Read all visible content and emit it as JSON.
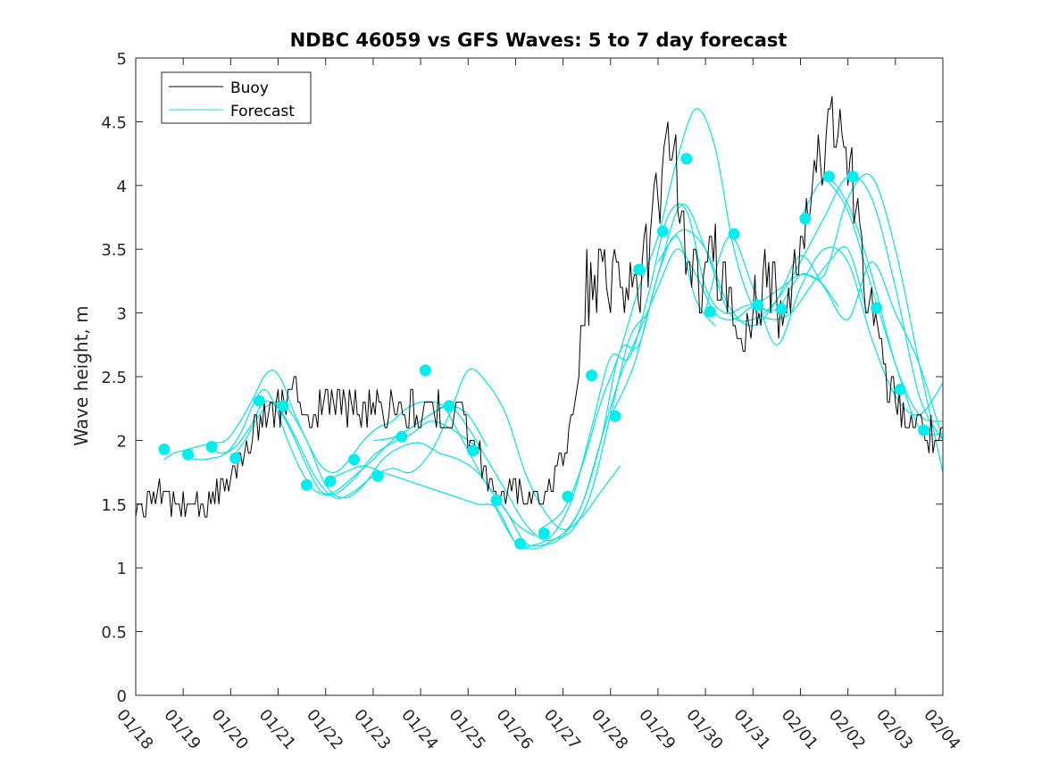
{
  "chart_data": {
    "type": "line",
    "title": "NDBC 46059 vs GFS Waves: 5 to 7 day forecast",
    "xlabel": "",
    "ylabel": "Wave height, m",
    "xlim": [
      0,
      17
    ],
    "ylim": [
      0,
      5
    ],
    "xticks": [
      0,
      1,
      2,
      3,
      4,
      5,
      6,
      7,
      8,
      9,
      10,
      11,
      12,
      13,
      14,
      15,
      16,
      17
    ],
    "xtick_labels": [
      "01/18",
      "01/19",
      "01/20",
      "01/21",
      "01/22",
      "01/23",
      "01/24",
      "01/25",
      "01/26",
      "01/27",
      "01/28",
      "01/29",
      "01/30",
      "01/31",
      "02/01",
      "02/02",
      "02/03",
      "02/04"
    ],
    "yticks": [
      0,
      0.5,
      1,
      1.5,
      2,
      2.5,
      3,
      3.5,
      4,
      4.5,
      5
    ],
    "ytick_labels": [
      "0",
      "0.5",
      "1",
      "1.5",
      "2",
      "2.5",
      "3",
      "3.5",
      "4",
      "4.5",
      "5"
    ],
    "grid": false,
    "legend": {
      "position": "top-left",
      "entries": [
        {
          "label": "Buoy",
          "color": "#000000"
        },
        {
          "label": "Forecast",
          "color": "#00e5e5"
        }
      ]
    },
    "colors": {
      "buoy": "#000000",
      "forecast": "#00e5e5",
      "marker": "#00eeee"
    },
    "buoy_anchor": {
      "x": [
        0,
        0.3,
        0.6,
        0.9,
        1.2,
        1.5,
        1.8,
        2.0,
        2.2,
        2.5,
        2.8,
        3.0,
        3.2,
        3.5,
        3.8,
        4.0,
        4.2,
        4.5,
        4.8,
        5.0,
        5.2,
        5.5,
        5.8,
        6.0,
        6.2,
        6.5,
        6.8,
        7.0,
        7.2,
        7.4,
        7.6,
        7.8,
        8.0,
        8.2,
        8.5,
        8.7,
        9.0,
        9.3,
        9.5,
        9.7,
        9.9,
        10.2,
        10.5,
        10.8,
        11.0,
        11.2,
        11.4,
        11.6,
        11.8,
        12.0,
        12.2,
        12.5,
        12.8,
        13.0,
        13.2,
        13.4,
        13.6,
        13.8,
        14.0,
        14.2,
        14.5,
        14.8,
        15.0,
        15.2,
        15.4,
        15.6,
        15.8,
        16.0,
        16.2,
        16.5,
        16.8,
        17.0
      ],
      "y": [
        1.5,
        1.55,
        1.6,
        1.5,
        1.55,
        1.5,
        1.6,
        1.7,
        1.9,
        2.1,
        2.25,
        2.3,
        2.35,
        2.3,
        2.25,
        2.3,
        2.35,
        2.3,
        2.3,
        2.25,
        2.3,
        2.2,
        2.25,
        2.2,
        2.2,
        2.25,
        2.2,
        2.1,
        1.9,
        1.7,
        1.6,
        1.55,
        1.6,
        1.6,
        1.5,
        1.6,
        1.9,
        2.5,
        3.2,
        3.3,
        3.3,
        3.4,
        3.1,
        3.5,
        3.9,
        4.4,
        4.1,
        3.5,
        3.2,
        3.3,
        3.4,
        3.1,
        2.8,
        3.0,
        3.2,
        3.3,
        3.0,
        3.2,
        3.5,
        3.8,
        4.3,
        4.5,
        4.2,
        3.8,
        3.3,
        2.8,
        2.5,
        2.3,
        2.2,
        2.1,
        2.0,
        2.0
      ]
    },
    "buoy_seed": 46059,
    "forecast_series": [
      {
        "name": "Forecast",
        "x": [
          0.6,
          0.8,
          1.0,
          1.3,
          1.6,
          1.9,
          2.2,
          2.5,
          2.7,
          2.9,
          3.1,
          3.3,
          3.6,
          3.9,
          4.2,
          4.5,
          4.8,
          5.1,
          5.4,
          5.7,
          6.0,
          6.3,
          6.6
        ],
        "y": [
          1.85,
          1.9,
          1.92,
          1.95,
          1.98,
          2.0,
          2.15,
          2.35,
          2.5,
          2.55,
          2.45,
          2.25,
          2.0,
          1.8,
          1.75,
          1.85,
          2.0,
          2.1,
          2.15,
          2.25,
          2.3,
          2.3,
          2.25
        ]
      },
      {
        "name": "Forecast",
        "x": [
          1.0,
          1.3,
          1.6,
          1.9,
          2.2,
          2.5,
          2.7,
          2.9,
          3.2,
          3.5,
          3.8,
          4.2,
          4.6,
          5.0,
          5.4,
          5.8,
          6.2,
          6.6,
          7.0,
          7.3
        ],
        "y": [
          1.88,
          1.85,
          1.86,
          1.9,
          2.05,
          2.3,
          2.4,
          2.3,
          2.0,
          1.75,
          1.6,
          1.58,
          1.7,
          1.88,
          1.98,
          2.05,
          2.15,
          2.1,
          2.0,
          1.92
        ]
      },
      {
        "name": "Forecast",
        "x": [
          1.5,
          1.8,
          2.1,
          2.4,
          2.7,
          3.0,
          3.3,
          3.6,
          3.9,
          4.2,
          4.6,
          5.0,
          5.4,
          5.8,
          6.2,
          6.6,
          7.0,
          7.4
        ],
        "y": [
          1.95,
          1.9,
          1.95,
          2.1,
          2.3,
          2.25,
          2.05,
          1.8,
          1.6,
          1.6,
          1.72,
          1.85,
          2.0,
          2.1,
          2.2,
          2.27,
          2.2,
          1.95
        ]
      },
      {
        "name": "Forecast",
        "x": [
          2.0,
          2.3,
          2.6,
          2.9,
          3.2,
          3.6,
          4.0,
          4.4,
          4.8,
          5.2,
          5.6,
          6.0,
          6.4,
          6.8,
          7.2,
          7.6,
          8.0,
          8.4
        ],
        "y": [
          1.85,
          2.0,
          2.2,
          2.3,
          2.25,
          2.0,
          1.65,
          1.55,
          1.65,
          1.85,
          1.95,
          1.98,
          1.9,
          1.85,
          1.75,
          1.55,
          1.35,
          1.25
        ]
      },
      {
        "name": "Forecast",
        "x": [
          3.0,
          3.4,
          3.8,
          4.2,
          4.6,
          5.0,
          5.4,
          5.8,
          6.2,
          6.6,
          7.0,
          7.4,
          7.8,
          8.2,
          8.6,
          9.0,
          9.4,
          9.8,
          10.2
        ],
        "y": [
          2.28,
          2.0,
          1.7,
          1.55,
          1.6,
          1.72,
          1.78,
          1.75,
          1.9,
          2.2,
          2.55,
          2.45,
          2.2,
          1.75,
          1.45,
          1.3,
          1.4,
          1.6,
          1.8
        ]
      },
      {
        "name": "Forecast",
        "x": [
          4.0,
          4.4,
          4.8,
          5.2,
          5.6,
          6.0,
          6.4,
          6.8,
          7.2,
          7.6,
          8.0,
          8.4,
          8.8,
          9.2,
          9.6,
          10.0,
          10.4,
          10.8
        ],
        "y": [
          1.68,
          1.75,
          1.8,
          1.75,
          1.7,
          1.65,
          1.6,
          1.55,
          1.5,
          1.47,
          1.2,
          1.15,
          1.22,
          1.3,
          1.6,
          2.2,
          2.8,
          3.0
        ]
      },
      {
        "name": "Forecast",
        "x": [
          5.0,
          5.4,
          5.8,
          6.2,
          6.6,
          7.0,
          7.4,
          7.8,
          8.2,
          8.6,
          9.0,
          9.4,
          9.8,
          10.2,
          10.6,
          11.0,
          11.4,
          11.8,
          12.2
        ],
        "y": [
          2.0,
          2.02,
          2.1,
          2.2,
          2.27,
          2.1,
          1.85,
          1.6,
          1.35,
          1.22,
          1.27,
          1.5,
          2.0,
          2.7,
          2.75,
          3.3,
          3.6,
          3.1,
          2.9
        ]
      },
      {
        "name": "Forecast",
        "x": [
          6.5,
          7.0,
          7.4,
          7.8,
          8.2,
          8.6,
          9.0,
          9.4,
          9.8,
          10.2,
          10.6,
          11.0,
          11.4,
          11.8,
          12.2,
          12.6,
          13.0,
          13.4
        ],
        "y": [
          2.27,
          1.92,
          1.65,
          1.45,
          1.2,
          1.18,
          1.25,
          1.5,
          2.0,
          2.5,
          2.85,
          3.2,
          3.5,
          3.3,
          3.0,
          2.95,
          3.05,
          3.0
        ]
      },
      {
        "name": "Forecast",
        "x": [
          7.5,
          8.0,
          8.4,
          8.8,
          9.2,
          9.6,
          10.0,
          10.4,
          10.8,
          11.2,
          11.6,
          12.0,
          12.4,
          12.8,
          13.2,
          13.6,
          14.0,
          14.4,
          14.8
        ],
        "y": [
          1.53,
          1.2,
          1.18,
          1.27,
          1.55,
          2.1,
          2.65,
          2.65,
          3.15,
          3.75,
          3.8,
          3.2,
          3.0,
          3.05,
          3.1,
          3.2,
          3.3,
          3.25,
          3.05
        ]
      },
      {
        "name": "Forecast",
        "x": [
          8.5,
          9.0,
          9.4,
          9.8,
          10.2,
          10.6,
          11.0,
          11.4,
          11.8,
          12.2,
          12.6,
          13.0,
          13.4,
          13.8,
          14.2,
          14.6,
          15.0,
          15.4
        ],
        "y": [
          1.3,
          1.45,
          1.8,
          2.3,
          2.7,
          3.2,
          3.6,
          4.2,
          4.6,
          4.3,
          3.5,
          3.05,
          2.95,
          3.0,
          3.2,
          3.4,
          3.5,
          3.0
        ]
      },
      {
        "name": "Forecast",
        "x": [
          10.0,
          10.5,
          11.0,
          11.5,
          12.0,
          12.5,
          13.0,
          13.5,
          14.0,
          14.5,
          15.0,
          15.5,
          16.0,
          16.5,
          17.0
        ],
        "y": [
          2.19,
          2.6,
          3.3,
          3.85,
          3.5,
          3.0,
          2.95,
          3.1,
          3.4,
          3.75,
          4.07,
          3.9,
          3.2,
          2.35,
          2.0
        ]
      },
      {
        "name": "Forecast",
        "x": [
          11.0,
          11.5,
          12.0,
          12.5,
          13.0,
          13.5,
          14.0,
          14.5,
          15.0,
          15.5,
          16.0,
          16.5,
          17.0
        ],
        "y": [
          3.4,
          3.65,
          3.5,
          3.05,
          2.9,
          3.1,
          3.45,
          3.2,
          2.95,
          3.4,
          3.0,
          2.6,
          2.0
        ]
      },
      {
        "name": "Forecast",
        "x": [
          12.0,
          12.5,
          13.0,
          13.5,
          14.0,
          14.5,
          15.0,
          15.5,
          16.0,
          16.5,
          17.0
        ],
        "y": [
          3.02,
          3.6,
          3.2,
          2.75,
          3.2,
          3.5,
          3.4,
          2.8,
          2.35,
          2.2,
          2.45
        ]
      },
      {
        "name": "Forecast",
        "x": [
          13.0,
          13.5,
          14.0,
          14.5,
          15.0,
          15.5,
          16.0,
          16.5,
          17.0
        ],
        "y": [
          3.06,
          3.03,
          3.3,
          3.3,
          3.9,
          4.07,
          3.5,
          2.6,
          1.75
        ]
      },
      {
        "name": "Forecast",
        "x": [
          14.0,
          14.5,
          15.0,
          15.5,
          16.0,
          16.5,
          17.0
        ],
        "y": [
          3.74,
          4.05,
          3.85,
          3.3,
          2.6,
          2.2,
          2.15
        ]
      },
      {
        "name": "Forecast",
        "x": [
          14.5,
          15.0,
          15.5,
          16.0,
          16.5,
          17.0
        ],
        "y": [
          4.07,
          3.8,
          3.2,
          2.6,
          2.1,
          2.05
        ]
      }
    ],
    "markers": {
      "x": [
        0.6,
        1.1,
        1.6,
        2.1,
        2.6,
        3.1,
        3.6,
        4.1,
        4.6,
        5.1,
        5.6,
        6.1,
        6.6,
        7.1,
        7.6,
        8.1,
        8.6,
        9.1,
        9.6,
        10.1,
        10.6,
        11.1,
        11.6,
        12.1,
        12.6,
        13.1,
        13.6,
        14.1,
        14.6,
        15.1,
        15.6,
        16.1,
        16.6
      ],
      "y": [
        1.93,
        1.89,
        1.95,
        1.86,
        2.31,
        2.27,
        1.65,
        1.68,
        1.85,
        1.72,
        2.03,
        2.55,
        2.27,
        1.92,
        1.53,
        1.19,
        1.27,
        1.56,
        2.51,
        2.19,
        3.34,
        3.64,
        4.21,
        3.01,
        3.62,
        3.06,
        3.03,
        3.74,
        4.07,
        4.07,
        3.04,
        2.4,
        2.08
      ]
    }
  }
}
